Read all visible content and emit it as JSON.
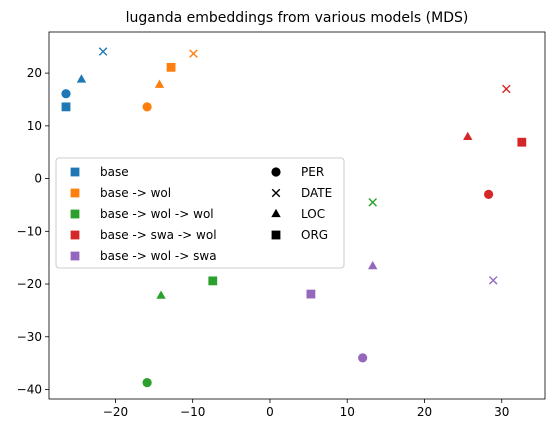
{
  "chart_data": {
    "type": "scatter",
    "title": "luganda embeddings from various models (MDS)",
    "xlabel": "",
    "ylabel": "",
    "xlim": [
      -28.6,
      35.6
    ],
    "ylim": [
      -41.8,
      27.8
    ],
    "xticks": [
      -20,
      -10,
      0,
      10,
      20,
      30
    ],
    "yticks": [
      -40,
      -30,
      -20,
      -10,
      0,
      10,
      20
    ],
    "xtick_labels": [
      "−20",
      "−10",
      "0",
      "10",
      "20",
      "30"
    ],
    "ytick_labels": [
      "−40",
      "−30",
      "−20",
      "−10",
      "0",
      "10",
      "20"
    ],
    "grid": false,
    "legend_placement": "center-left",
    "series": [
      {
        "name": "base",
        "color": "#1f77b4",
        "points": [
          {
            "label": "PER",
            "x": -26.4,
            "y": 16.1
          },
          {
            "label": "DATE",
            "x": -21.6,
            "y": 24.1
          },
          {
            "label": "LOC",
            "x": -24.4,
            "y": 18.8
          },
          {
            "label": "ORG",
            "x": -26.4,
            "y": 13.6
          }
        ]
      },
      {
        "name": "base -> wol",
        "color": "#ff7f0e",
        "points": [
          {
            "label": "PER",
            "x": -15.9,
            "y": 13.6
          },
          {
            "label": "DATE",
            "x": -9.9,
            "y": 23.7
          },
          {
            "label": "LOC",
            "x": -14.3,
            "y": 17.8
          },
          {
            "label": "ORG",
            "x": -12.8,
            "y": 21.1
          }
        ]
      },
      {
        "name": "base -> wol -> wol",
        "color": "#2ca02c",
        "points": [
          {
            "label": "PER",
            "x": -15.9,
            "y": -38.7
          },
          {
            "label": "DATE",
            "x": 13.3,
            "y": -4.5
          },
          {
            "label": "LOC",
            "x": -14.1,
            "y": -22.2
          },
          {
            "label": "ORG",
            "x": -7.4,
            "y": -19.4
          }
        ]
      },
      {
        "name": "base -> swa -> wol",
        "color": "#d62728",
        "points": [
          {
            "label": "PER",
            "x": 28.3,
            "y": -3.0
          },
          {
            "label": "DATE",
            "x": 30.6,
            "y": 17.0
          },
          {
            "label": "LOC",
            "x": 25.6,
            "y": 7.9
          },
          {
            "label": "ORG",
            "x": 32.6,
            "y": 6.9
          }
        ]
      },
      {
        "name": "base -> wol -> swa",
        "color": "#9467bd",
        "points": [
          {
            "label": "PER",
            "x": 12.0,
            "y": -34.0
          },
          {
            "label": "DATE",
            "x": 28.9,
            "y": -19.3
          },
          {
            "label": "LOC",
            "x": 13.3,
            "y": -16.6
          },
          {
            "label": "ORG",
            "x": 5.3,
            "y": -21.9
          }
        ]
      }
    ],
    "marker_legend": [
      {
        "label": "PER",
        "shape": "circle"
      },
      {
        "label": "DATE",
        "shape": "x"
      },
      {
        "label": "LOC",
        "shape": "triangle"
      },
      {
        "label": "ORG",
        "shape": "square"
      }
    ]
  }
}
